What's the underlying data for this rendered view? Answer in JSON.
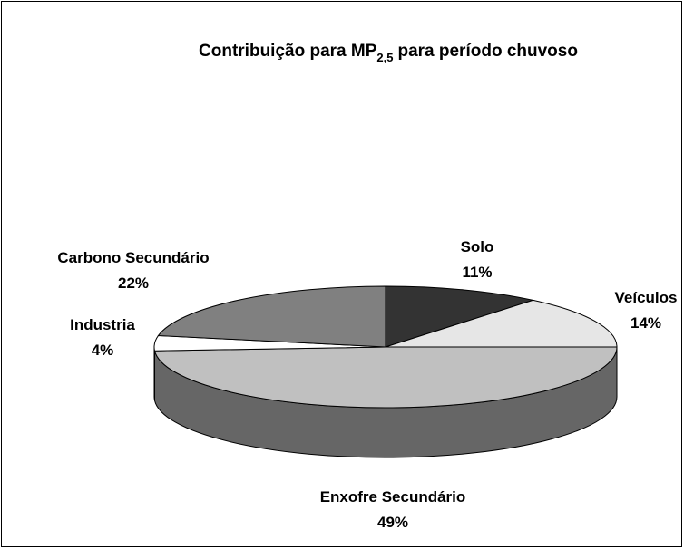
{
  "chart_data": {
    "type": "pie3d",
    "title": "Contribuição para MP",
    "title_subscript": "2,5",
    "title_rest": "para período chuvoso",
    "categories": [
      "Solo",
      "Veículos",
      "Enxofre Secundário",
      "Industria",
      "Carbono Secundário"
    ],
    "values": [
      11,
      14,
      49,
      4,
      22
    ],
    "value_labels": [
      "11%",
      "14%",
      "49%",
      "4%",
      "22%"
    ],
    "colors": [
      "#333333",
      "#e6e6e6",
      "#c0c0c0",
      "#ffffff",
      "#808080"
    ],
    "side_colors": [
      "#1a1a1a",
      "#999999",
      "#666666",
      "#ffffff",
      "#4d4d4d"
    ]
  }
}
